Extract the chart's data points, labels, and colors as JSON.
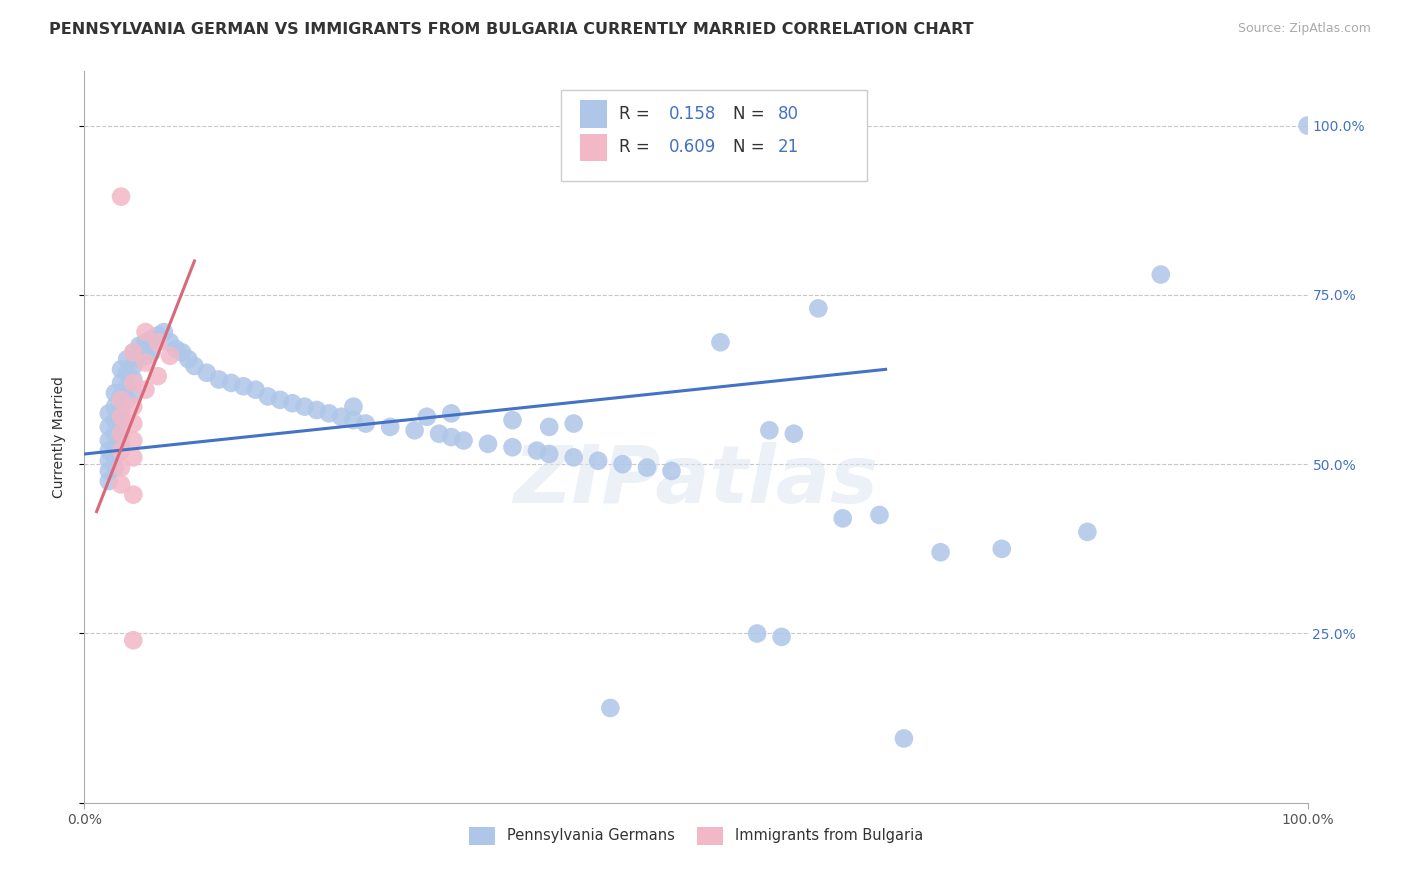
{
  "title": "PENNSYLVANIA GERMAN VS IMMIGRANTS FROM BULGARIA CURRENTLY MARRIED CORRELATION CHART",
  "source": "Source: ZipAtlas.com",
  "ylabel": "Currently Married",
  "xlim": [
    0.0,
    1.0
  ],
  "ylim": [
    0.0,
    1.08
  ],
  "bg_color": "#ffffff",
  "grid_color": "#c8c8c8",
  "watermark": "ZIPatlas",
  "blue_color": "#aec6e8",
  "pink_color": "#f2b8c6",
  "blue_line_color": "#4472c4",
  "pink_line_color": "#d9687a",
  "blue_scatter": [
    [
      0.02,
      0.575
    ],
    [
      0.02,
      0.555
    ],
    [
      0.02,
      0.535
    ],
    [
      0.02,
      0.52
    ],
    [
      0.02,
      0.505
    ],
    [
      0.02,
      0.49
    ],
    [
      0.02,
      0.475
    ],
    [
      0.025,
      0.605
    ],
    [
      0.025,
      0.585
    ],
    [
      0.025,
      0.565
    ],
    [
      0.025,
      0.545
    ],
    [
      0.025,
      0.525
    ],
    [
      0.025,
      0.51
    ],
    [
      0.025,
      0.495
    ],
    [
      0.03,
      0.64
    ],
    [
      0.03,
      0.62
    ],
    [
      0.03,
      0.6
    ],
    [
      0.03,
      0.58
    ],
    [
      0.03,
      0.565
    ],
    [
      0.03,
      0.548
    ],
    [
      0.03,
      0.53
    ],
    [
      0.035,
      0.655
    ],
    [
      0.035,
      0.635
    ],
    [
      0.035,
      0.615
    ],
    [
      0.035,
      0.595
    ],
    [
      0.04,
      0.665
    ],
    [
      0.04,
      0.645
    ],
    [
      0.04,
      0.625
    ],
    [
      0.04,
      0.605
    ],
    [
      0.045,
      0.675
    ],
    [
      0.045,
      0.655
    ],
    [
      0.05,
      0.68
    ],
    [
      0.05,
      0.66
    ],
    [
      0.055,
      0.685
    ],
    [
      0.055,
      0.665
    ],
    [
      0.06,
      0.69
    ],
    [
      0.065,
      0.695
    ],
    [
      0.07,
      0.68
    ],
    [
      0.075,
      0.67
    ],
    [
      0.08,
      0.665
    ],
    [
      0.085,
      0.655
    ],
    [
      0.09,
      0.645
    ],
    [
      0.1,
      0.635
    ],
    [
      0.11,
      0.625
    ],
    [
      0.12,
      0.62
    ],
    [
      0.13,
      0.615
    ],
    [
      0.14,
      0.61
    ],
    [
      0.15,
      0.6
    ],
    [
      0.16,
      0.595
    ],
    [
      0.17,
      0.59
    ],
    [
      0.18,
      0.585
    ],
    [
      0.19,
      0.58
    ],
    [
      0.2,
      0.575
    ],
    [
      0.21,
      0.57
    ],
    [
      0.22,
      0.565
    ],
    [
      0.23,
      0.56
    ],
    [
      0.25,
      0.555
    ],
    [
      0.27,
      0.55
    ],
    [
      0.29,
      0.545
    ],
    [
      0.3,
      0.54
    ],
    [
      0.31,
      0.535
    ],
    [
      0.33,
      0.53
    ],
    [
      0.35,
      0.525
    ],
    [
      0.37,
      0.52
    ],
    [
      0.38,
      0.515
    ],
    [
      0.4,
      0.51
    ],
    [
      0.42,
      0.505
    ],
    [
      0.44,
      0.5
    ],
    [
      0.46,
      0.495
    ],
    [
      0.48,
      0.49
    ],
    [
      0.38,
      0.555
    ],
    [
      0.4,
      0.56
    ],
    [
      0.35,
      0.565
    ],
    [
      0.28,
      0.57
    ],
    [
      0.3,
      0.575
    ],
    [
      0.22,
      0.585
    ],
    [
      0.52,
      0.68
    ],
    [
      0.6,
      0.73
    ],
    [
      0.56,
      0.55
    ],
    [
      0.58,
      0.545
    ],
    [
      0.62,
      0.42
    ],
    [
      0.65,
      0.425
    ],
    [
      0.7,
      0.37
    ],
    [
      0.75,
      0.375
    ],
    [
      0.82,
      0.4
    ],
    [
      0.88,
      0.78
    ],
    [
      1.0,
      1.0
    ],
    [
      0.55,
      0.25
    ],
    [
      0.57,
      0.245
    ],
    [
      0.43,
      0.14
    ],
    [
      0.67,
      0.095
    ]
  ],
  "pink_scatter": [
    [
      0.03,
      0.895
    ],
    [
      0.04,
      0.665
    ],
    [
      0.05,
      0.695
    ],
    [
      0.05,
      0.65
    ],
    [
      0.06,
      0.68
    ],
    [
      0.06,
      0.63
    ],
    [
      0.07,
      0.66
    ],
    [
      0.04,
      0.62
    ],
    [
      0.05,
      0.61
    ],
    [
      0.03,
      0.595
    ],
    [
      0.04,
      0.585
    ],
    [
      0.03,
      0.57
    ],
    [
      0.04,
      0.56
    ],
    [
      0.03,
      0.545
    ],
    [
      0.04,
      0.535
    ],
    [
      0.03,
      0.52
    ],
    [
      0.04,
      0.51
    ],
    [
      0.03,
      0.495
    ],
    [
      0.03,
      0.47
    ],
    [
      0.04,
      0.455
    ],
    [
      0.04,
      0.24
    ]
  ],
  "blue_trendline": [
    [
      0.0,
      0.515
    ],
    [
      0.655,
      0.64
    ]
  ],
  "pink_trendline": [
    [
      0.01,
      0.43
    ],
    [
      0.09,
      0.8
    ]
  ],
  "ytick_positions": [
    0.0,
    0.25,
    0.5,
    0.75,
    1.0
  ],
  "ytick_labels_right": [
    "",
    "25.0%",
    "50.0%",
    "75.0%",
    "100.0%"
  ],
  "xtick_positions": [
    0.0,
    1.0
  ],
  "xtick_labels": [
    "0.0%",
    "100.0%"
  ],
  "title_fontsize": 11.5,
  "ylabel_fontsize": 10,
  "tick_fontsize": 10,
  "source_fontsize": 9,
  "legend_fontsize": 12
}
